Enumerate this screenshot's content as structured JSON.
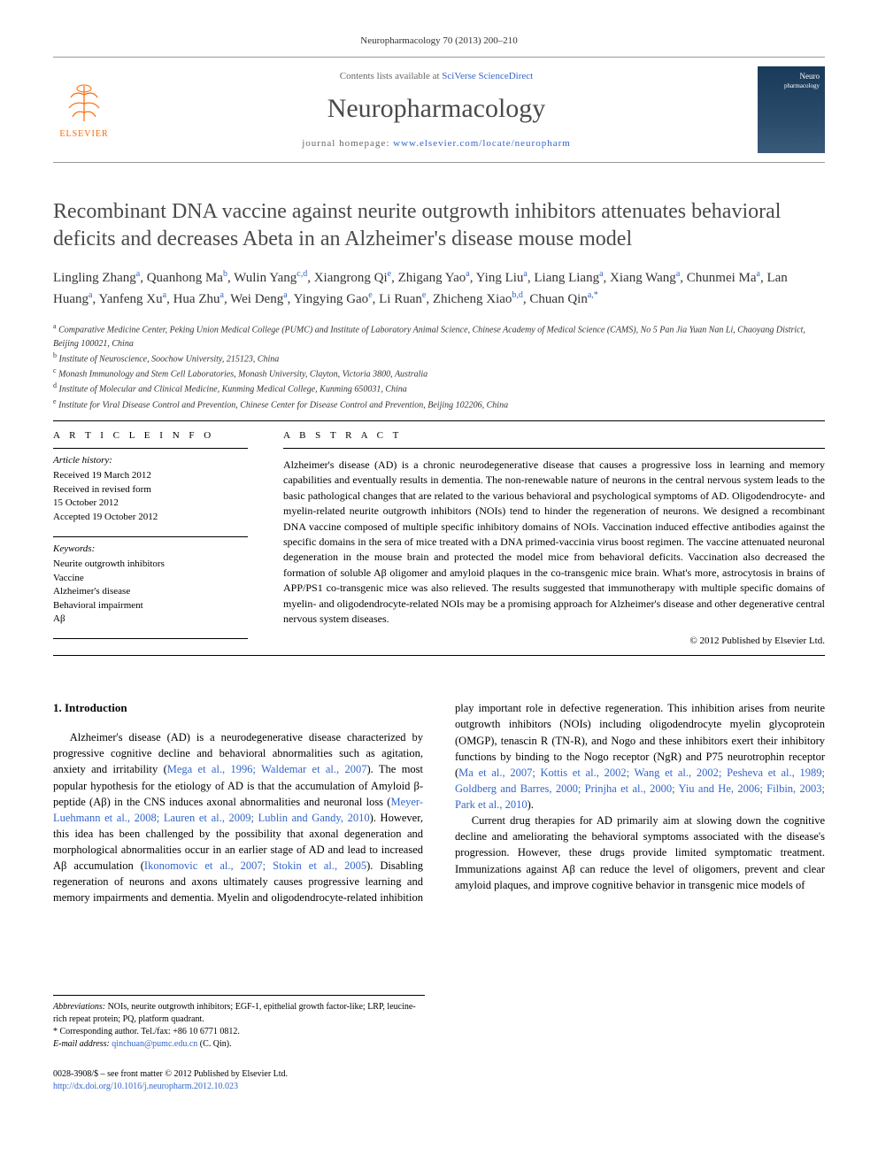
{
  "citation": "Neuropharmacology 70 (2013) 200–210",
  "masthead": {
    "contents_prefix": "Contents lists available at ",
    "contents_link": "SciVerse ScienceDirect",
    "journal": "Neuropharmacology",
    "homepage_prefix": "journal homepage: ",
    "homepage_url": "www.elsevier.com/locate/neuropharm",
    "elsevier": "ELSEVIER",
    "cover_title": "Neuro",
    "cover_sub": "pharmacology"
  },
  "article": {
    "title": "Recombinant DNA vaccine against neurite outgrowth inhibitors attenuates behavioral deficits and decreases Abeta in an Alzheimer's disease mouse model",
    "authors_html": "Lingling Zhang<sup>a</sup>, Quanhong Ma<sup>b</sup>, Wulin Yang<sup>c,d</sup>, Xiangrong Qi<sup>e</sup>, Zhigang Yao<sup>a</sup>, Ying Liu<sup>a</sup>, Liang Liang<sup>a</sup>, Xiang Wang<sup>a</sup>, Chunmei Ma<sup>a</sup>, Lan Huang<sup>a</sup>, Yanfeng Xu<sup>a</sup>, Hua Zhu<sup>a</sup>, Wei Deng<sup>a</sup>, Yingying Gao<sup>e</sup>, Li Ruan<sup>e</sup>, Zhicheng Xiao<sup>b,d</sup>, Chuan Qin<sup>a,*</sup>",
    "affiliations": [
      "a Comparative Medicine Center, Peking Union Medical College (PUMC) and Institute of Laboratory Animal Science, Chinese Academy of Medical Science (CAMS), No 5 Pan Jia Yuan Nan Li, Chaoyang District, Beijing 100021, China",
      "b Institute of Neuroscience, Soochow University, 215123, China",
      "c Monash Immunology and Stem Cell Laboratories, Monash University, Clayton, Victoria 3800, Australia",
      "d Institute of Molecular and Clinical Medicine, Kunming Medical College, Kunming 650031, China",
      "e Institute for Viral Disease Control and Prevention, Chinese Center for Disease Control and Prevention, Beijing 102206, China"
    ]
  },
  "info": {
    "heading": "A R T I C L E   I N F O",
    "history_label": "Article history:",
    "history": [
      "Received 19 March 2012",
      "Received in revised form",
      "15 October 2012",
      "Accepted 19 October 2012"
    ],
    "keywords_label": "Keywords:",
    "keywords": [
      "Neurite outgrowth inhibitors",
      "Vaccine",
      "Alzheimer's disease",
      "Behavioral impairment",
      "Aβ"
    ]
  },
  "abstract": {
    "heading": "A B S T R A C T",
    "text": "Alzheimer's disease (AD) is a chronic neurodegenerative disease that causes a progressive loss in learning and memory capabilities and eventually results in dementia. The non-renewable nature of neurons in the central nervous system leads to the basic pathological changes that are related to the various behavioral and psychological symptoms of AD. Oligodendrocyte- and myelin-related neurite outgrowth inhibitors (NOIs) tend to hinder the regeneration of neurons. We designed a recombinant DNA vaccine composed of multiple specific inhibitory domains of NOIs. Vaccination induced effective antibodies against the specific domains in the sera of mice treated with a DNA primed-vaccinia virus boost regimen. The vaccine attenuated neuronal degeneration in the mouse brain and protected the model mice from behavioral deficits. Vaccination also decreased the formation of soluble Aβ oligomer and amyloid plaques in the co-transgenic mice brain. What's more, astrocytosis in brains of APP/PS1 co-transgenic mice was also relieved. The results suggested that immunotherapy with multiple specific domains of myelin- and oligodendrocyte-related NOIs may be a promising approach for Alzheimer's disease and other degenerative central nervous system diseases.",
    "copyright": "© 2012 Published by Elsevier Ltd."
  },
  "body": {
    "section_num": "1.",
    "section_title": "Introduction",
    "col1_p1": "Alzheimer's disease (AD) is a neurodegenerative disease characterized by progressive cognitive decline and behavioral abnormalities such as agitation, anxiety and irritability (",
    "ref1": "Mega et al., 1996; Waldemar et al., 2007",
    "col1_p1b": "). The most popular hypothesis for the etiology of AD is that the accumulation of Amyloid β-peptide (Aβ) in the CNS induces axonal abnormalities and neuronal loss (",
    "ref2": "Meyer-Luehmann et al., 2008; Lauren et al., 2009; Lublin and Gandy, 2010",
    "col1_p1c": "). However, this idea has been challenged by the possibility that axonal degeneration and morphological abnormalities occur in an earlier stage of AD and lead to increased Aβ",
    "col2_p1a": "accumulation (",
    "ref3": "Ikonomovic et al., 2007; Stokin et al., 2005",
    "col2_p1b": "). Disabling regeneration of neurons and axons ultimately causes progressive learning and memory impairments and dementia. Myelin and oligodendrocyte-related inhibition play important role in defective regeneration. This inhibition arises from neurite outgrowth inhibitors (NOIs) including oligodendrocyte myelin glycoprotein (OMGP), tenascin R (TN-R), and Nogo and these inhibitors exert their inhibitory functions by binding to the Nogo receptor (NgR) and P75 neurotrophin receptor (",
    "ref4": "Ma et al., 2007; Kottis et al., 2002; Wang et al., 2002; Pesheva et al., 1989; Goldberg and Barres, 2000; Prinjha et al., 2000; Yiu and He, 2006; Filbin, 2003; Park et al., 2010",
    "col2_p1c": ").",
    "col2_p2": "Current drug therapies for AD primarily aim at slowing down the cognitive decline and ameliorating the behavioral symptoms associated with the disease's progression. However, these drugs provide limited symptomatic treatment. Immunizations against Aβ can reduce the level of oligomers, prevent and clear amyloid plaques, and improve cognitive behavior in transgenic mice models of"
  },
  "footnotes": {
    "abbrev_label": "Abbreviations:",
    "abbrev": " NOIs, neurite outgrowth inhibitors; EGF-1, epithelial growth factor-like; LRP, leucine-rich repeat protein; PQ, platform quadrant.",
    "corr_label": "* Corresponding author. Tel./fax: +86 10 6771 0812.",
    "email_label": "E-mail address: ",
    "email": "qinchuan@pumc.edu.cn",
    "email_suffix": " (C. Qin)."
  },
  "footer": {
    "issn": "0028-3908/$ – see front matter © 2012 Published by Elsevier Ltd.",
    "doi": "http://dx.doi.org/10.1016/j.neuropharm.2012.10.023"
  },
  "colors": {
    "link": "#3366cc",
    "elsevier_orange": "#ff6600",
    "text": "#000000",
    "heading_gray": "#4a4a4a"
  }
}
